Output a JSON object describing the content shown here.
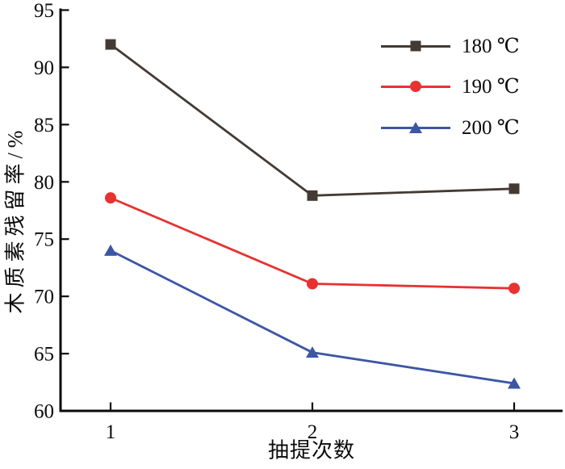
{
  "figure": {
    "background": "#ffffff",
    "axis_color": "#0a0a0a",
    "text_color": "#0a0a0a"
  },
  "chart_data": {
    "type": "line",
    "title": "",
    "xlabel": "抽提次数",
    "ylabel": "木质素残留率/%",
    "x": [
      1,
      2,
      3
    ],
    "xticks": [
      "1",
      "2",
      "3"
    ],
    "ylim": [
      60,
      95
    ],
    "yticks": [
      60,
      65,
      70,
      75,
      80,
      85,
      90,
      95
    ],
    "grid": false,
    "legend_position": "top-right",
    "series": [
      {
        "name": "180 ℃",
        "color": "#443a34",
        "marker": "square",
        "values": [
          92.0,
          78.8,
          79.4
        ]
      },
      {
        "name": "190 ℃",
        "color": "#e73231",
        "marker": "circle",
        "values": [
          78.6,
          71.1,
          70.7
        ]
      },
      {
        "name": "200 ℃",
        "color": "#3c56a5",
        "marker": "triangle",
        "values": [
          74.0,
          65.1,
          62.4
        ]
      }
    ]
  }
}
